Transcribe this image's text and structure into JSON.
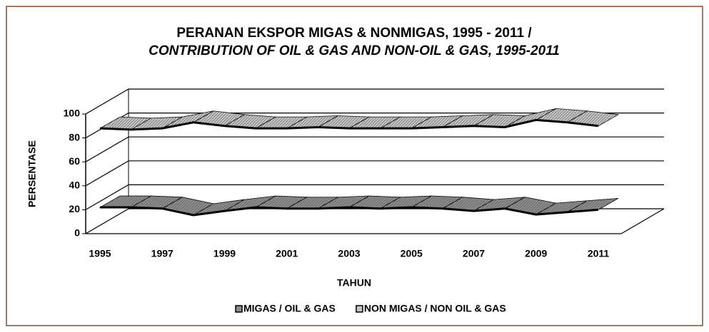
{
  "chart_data": {
    "type": "line3d",
    "title": "PERANAN EKSPOR MIGAS & NONMIGAS, 1995 - 2011 /",
    "subtitle": "CONTRIBUTION OF OIL & GAS AND NON-OIL & GAS, 1995-2011",
    "x_label": "TAHUN",
    "y_label": "PERSENTASE",
    "categories": [
      "1995",
      null,
      "1997",
      null,
      "1999",
      null,
      "2001",
      null,
      "2003",
      null,
      "2005",
      null,
      "2007",
      null,
      "2009",
      null,
      "2011"
    ],
    "series": [
      {
        "name": "MIGAS / OIL & GAS",
        "color": "#8c8c8c",
        "values": [
          22,
          22,
          21,
          15.5,
          19,
          22,
          21,
          21,
          22,
          21,
          22,
          21,
          19,
          21,
          16,
          18,
          20
        ]
      },
      {
        "name": "NON MIGAS / NON OIL & GAS",
        "color": "#c4c4c4",
        "values": [
          88,
          87,
          88,
          93,
          90,
          88,
          88,
          89,
          88,
          88,
          88,
          89,
          90,
          89,
          95,
          93,
          90
        ]
      }
    ],
    "ylim": [
      0,
      100
    ],
    "yticks": [
      0,
      20,
      40,
      60,
      80,
      100
    ],
    "grid": true,
    "legend": "bottom"
  }
}
